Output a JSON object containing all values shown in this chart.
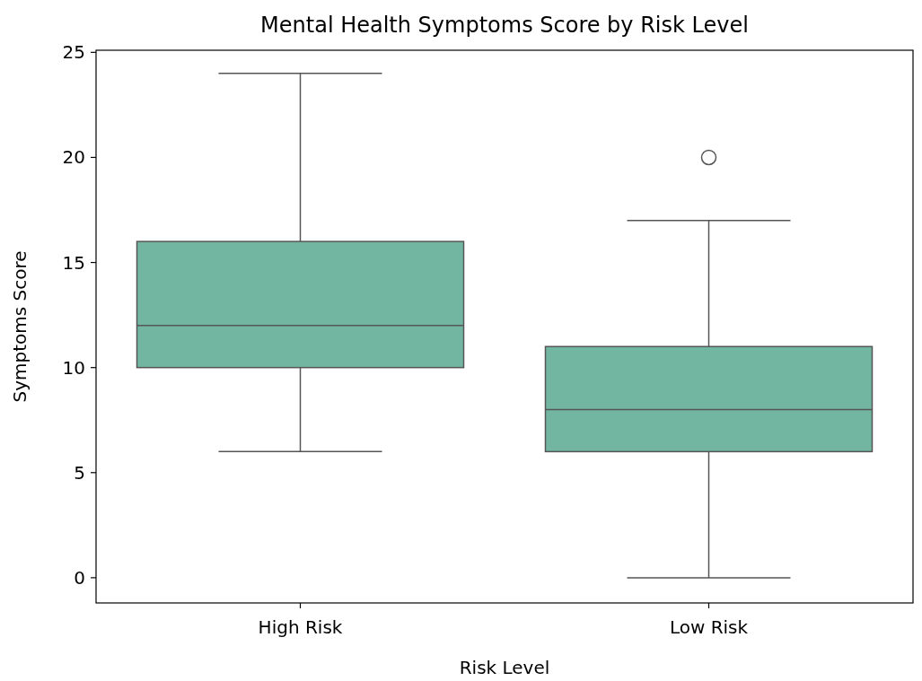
{
  "chart_data": {
    "type": "box",
    "title": "Mental Health Symptoms Score by Risk Level",
    "xlabel": "Risk Level",
    "ylabel": "Symptoms Score",
    "categories": [
      "High Risk",
      "Low Risk"
    ],
    "color": "#72b6a1",
    "boxes": [
      {
        "low": 6,
        "q1": 10,
        "median": 12,
        "q3": 16,
        "high": 24
      },
      {
        "low": 0,
        "q1": 6,
        "median": 8,
        "q3": 11,
        "high": 17,
        "outliers": [
          20
        ]
      }
    ],
    "ylim": [
      -1.2,
      25.1
    ],
    "yticks": [
      0,
      5,
      10,
      15,
      20,
      25
    ],
    "grid": false
  }
}
